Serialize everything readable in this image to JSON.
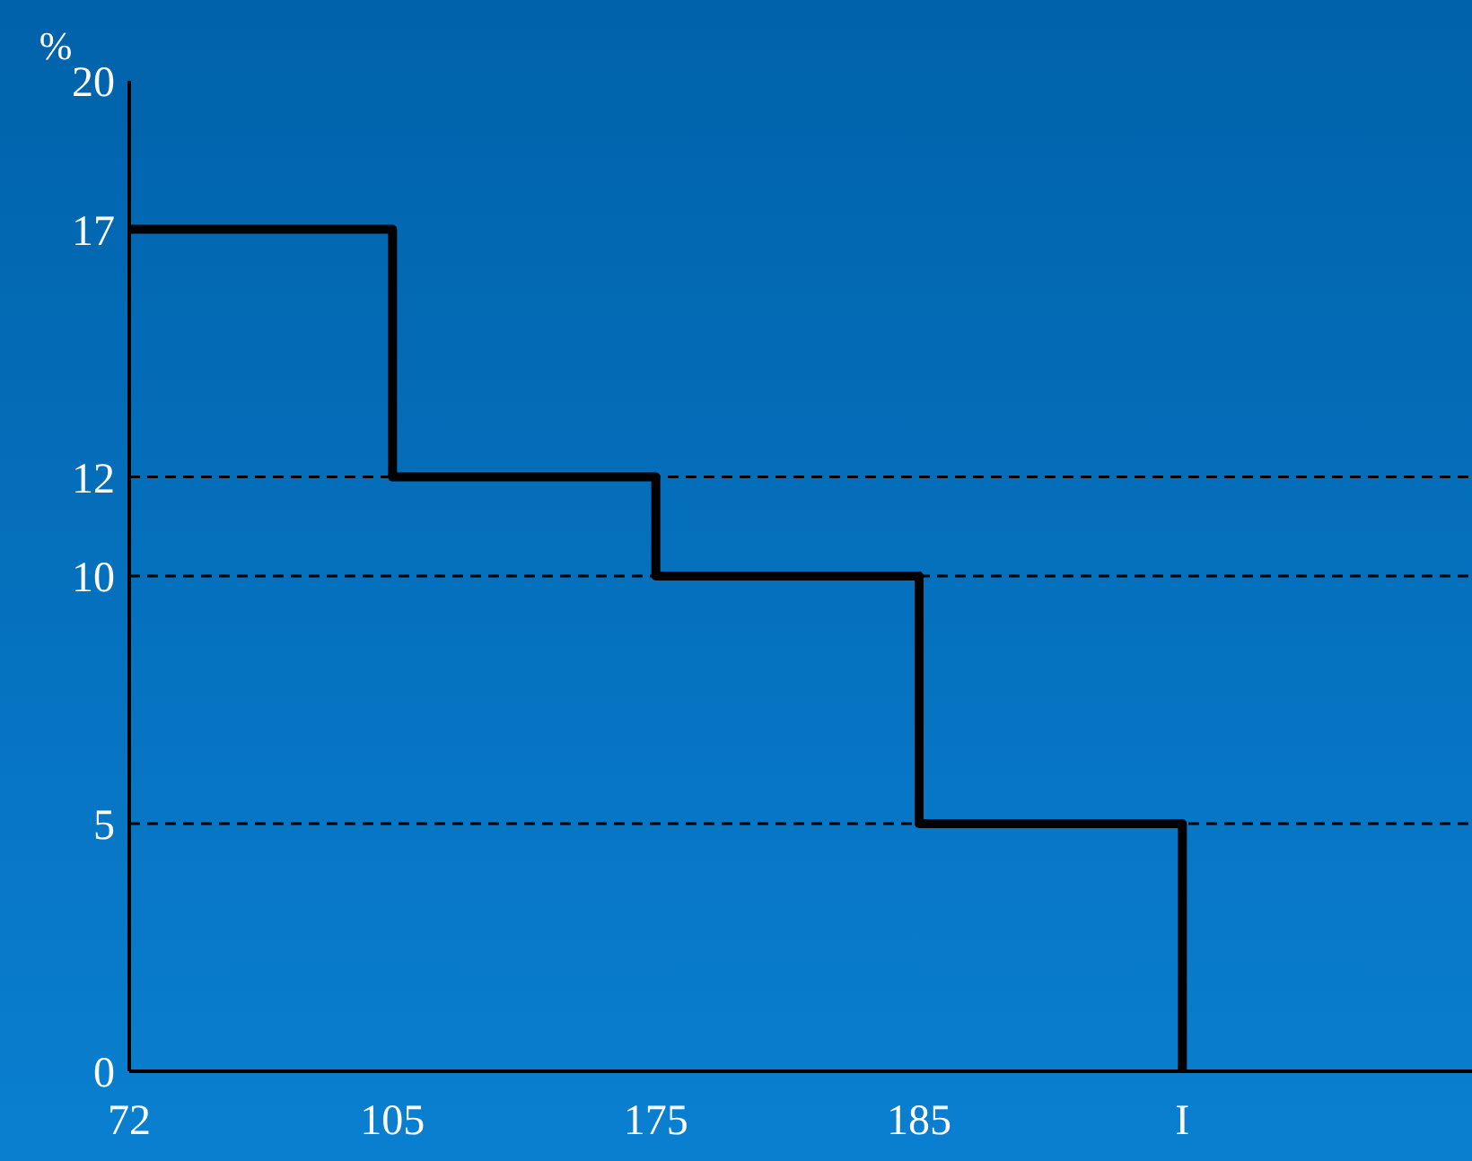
{
  "chart_data": {
    "type": "step",
    "ylabel": "%",
    "categories": [
      "72",
      "105",
      "175",
      "185",
      "I"
    ],
    "series": [
      {
        "color": "#000000",
        "values": [
          17,
          12,
          10,
          5,
          0
        ]
      }
    ],
    "ylim": [
      0,
      20
    ],
    "yticks": [
      0,
      5,
      10,
      12,
      17,
      20
    ],
    "ref_lines": [
      {
        "axis": "y",
        "value": 12,
        "color": "#000000",
        "line_style": "dashed"
      },
      {
        "axis": "y",
        "value": 10,
        "color": "#000000",
        "line_style": "dashed"
      },
      {
        "axis": "y",
        "value": 5,
        "color": "#000000",
        "line_style": "dashed"
      }
    ],
    "grid": false,
    "legend": false
  }
}
